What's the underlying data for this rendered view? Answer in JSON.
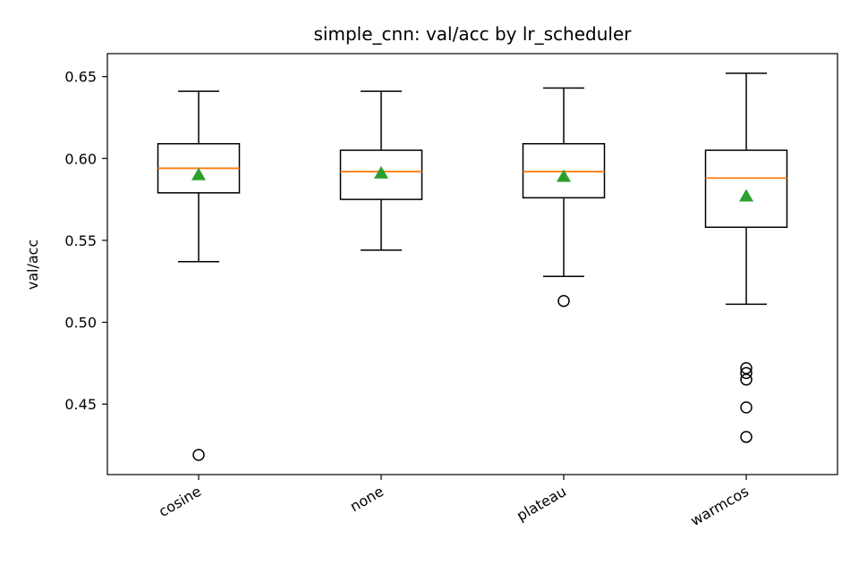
{
  "chart_data": {
    "type": "box",
    "title": "simple_cnn: val/acc by lr_scheduler",
    "xlabel": "",
    "ylabel": "val/acc",
    "ylim": [
      0.407,
      0.664
    ],
    "yticks": [
      0.45,
      0.5,
      0.55,
      0.6,
      0.65
    ],
    "ytick_labels": [
      "0.45",
      "0.50",
      "0.55",
      "0.60",
      "0.65"
    ],
    "categories": [
      "cosine",
      "none",
      "plateau",
      "warmcos"
    ],
    "boxes": [
      {
        "category": "cosine",
        "whisker_low": 0.537,
        "q1": 0.579,
        "median": 0.594,
        "q3": 0.609,
        "whisker_high": 0.641,
        "mean": 0.59,
        "outliers": [
          0.419
        ]
      },
      {
        "category": "none",
        "whisker_low": 0.544,
        "q1": 0.575,
        "median": 0.592,
        "q3": 0.605,
        "whisker_high": 0.641,
        "mean": 0.591,
        "outliers": []
      },
      {
        "category": "plateau",
        "whisker_low": 0.528,
        "q1": 0.576,
        "median": 0.592,
        "q3": 0.609,
        "whisker_high": 0.643,
        "mean": 0.589,
        "outliers": [
          0.513
        ]
      },
      {
        "category": "warmcos",
        "whisker_low": 0.511,
        "q1": 0.558,
        "median": 0.588,
        "q3": 0.605,
        "whisker_high": 0.652,
        "mean": 0.577,
        "outliers": [
          0.472,
          0.469,
          0.465,
          0.448,
          0.43
        ]
      }
    ],
    "colors": {
      "median": "#ff7f0e",
      "mean": "#2ca02c",
      "box": "#000000"
    },
    "grid": false,
    "legend": "none"
  }
}
